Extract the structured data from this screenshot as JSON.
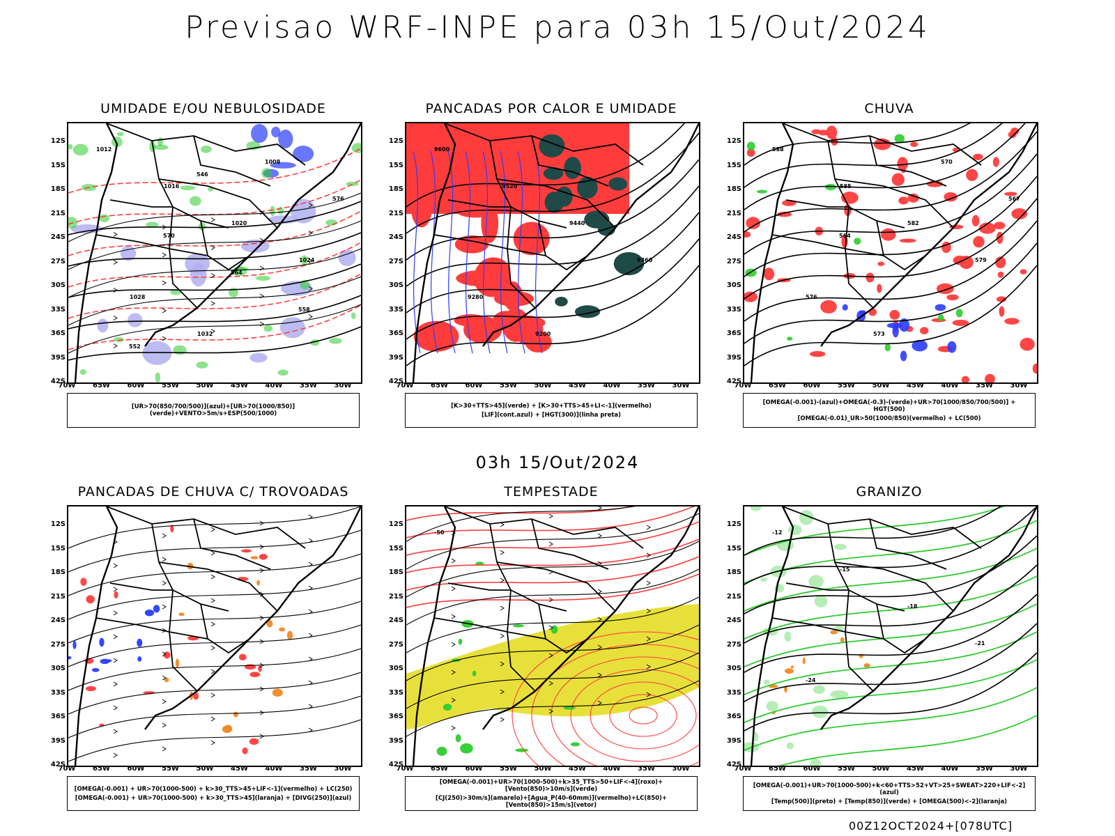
{
  "title": "Previsao WRF-INPE  para 03h 15/Out/2024",
  "subtitle": "03h 15/Out/2024",
  "footer": "00Z12OCT2024+[078UTC]",
  "axes": {
    "lat_labels": [
      "12S",
      "15S",
      "18S",
      "21S",
      "24S",
      "27S",
      "30S",
      "33S",
      "36S",
      "39S",
      "42S"
    ],
    "lon_labels": [
      "70W",
      "65W",
      "60W",
      "55W",
      "50W",
      "45W",
      "40W",
      "35W",
      "30W"
    ]
  },
  "colors": {
    "red": "#ff3c3c",
    "green": "#2ecc2e",
    "blue": "#2a3cff",
    "lavender": "#b0b0f0",
    "darkteal": "#1f4a48",
    "yellow": "#e8e03a",
    "orange": "#f08a24",
    "contour": "#000000"
  },
  "panels": [
    {
      "title": "UMIDADE E/OU NEBULOSIDADE",
      "legend": [
        "[UR>70(850/700/500)](azul)+[UR>70(1000/850)](verde)+VENTO>5m/s+ESP(500/1000)"
      ],
      "contour_labels": [
        "1012",
        "1016",
        "1020",
        "1024",
        "1028",
        "1032",
        "1008",
        "576",
        "570",
        "564",
        "558",
        "552",
        "546"
      ]
    },
    {
      "title": "PANCADAS POR CALOR E UMIDADE",
      "legend": [
        "[K>30+TTS>45](verde) + [K>30+TTS>45+LI<-1](vermelho)",
        "[LIF](cont.azul) + [HGT(300)](linha preta)"
      ],
      "contour_labels": [
        "9600",
        "9520",
        "9440",
        "9360",
        "9280",
        "9200"
      ]
    },
    {
      "title": "CHUVA",
      "legend": [
        "[OMEGA(-0.001)-(azul)+OMEGA(-0.3)-(verde)+UR>70(1000/850/700/500)] + HGT(500)",
        "[OMEGA(-0.01)_UR>50(1000/850)(vermelho) + LC(500)"
      ],
      "contour_labels": [
        "588",
        "585",
        "582",
        "579",
        "576",
        "573",
        "570",
        "567",
        "564"
      ]
    },
    {
      "title": "PANCADAS DE CHUVA C/ TROVOADAS",
      "legend": [
        "[OMEGA(-0.001) + UR>70(1000-500) + k>30_TTS>45+LIF<-1](vermelho) + LC(250)",
        "[OMEGA(-0.001) + UR>70(1000-500) + k>30_TTS>45](laranja) + [DIVG(250)](azul)"
      ],
      "contour_labels": []
    },
    {
      "title": "TEMPESTADE",
      "legend": [
        "[OMEGA(-0.001)+UR>70(1000-500)+k>35_TTS>50+LIF<-4](roxo)+[Vento(850)>10m/s](verde)",
        "[CJ(250)>30m/s](amarelo)+[Agua_P(40-60mm)](vermelho)+LC(850)+[Vento(850)>15m/s](vetor)"
      ],
      "contour_labels": [
        "-50"
      ]
    },
    {
      "title": "GRANIZO",
      "legend": [
        "[OMEGA(-0.001)+UR>70(1000-500)+k<60+TTS>52+VT>25+SWEAT>220+LIF<-2](azul)",
        "[Temp(500)](preto) + [Temp(850)](verde) + [OMEGA(500)<-2](laranja)"
      ],
      "contour_labels": [
        "-12",
        "-15",
        "-18",
        "-21",
        "-24"
      ]
    }
  ]
}
